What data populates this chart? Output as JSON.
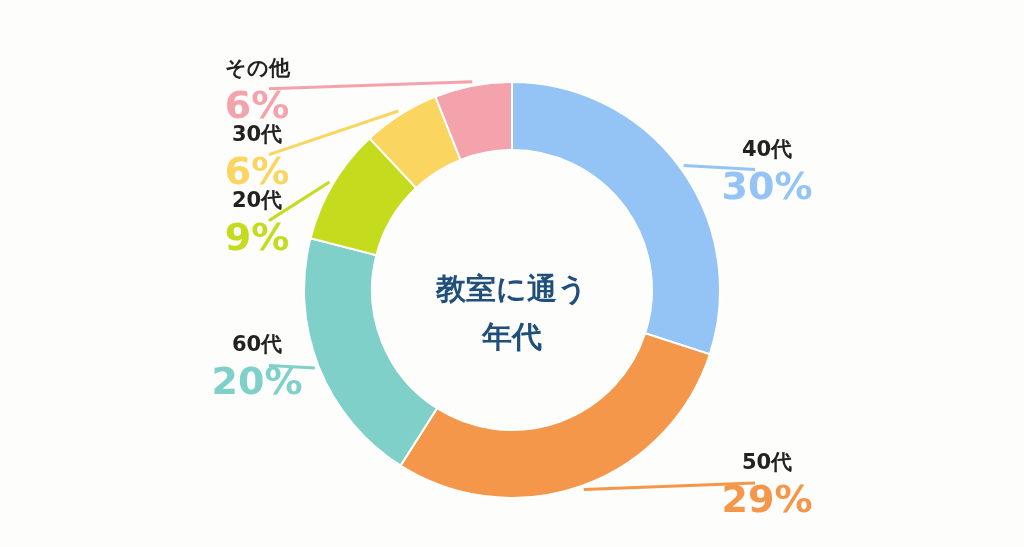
{
  "chart_data": {
    "type": "donut",
    "title": "教室に通う年代",
    "categories": [
      "40代",
      "50代",
      "60代",
      "20代",
      "30代",
      "その他"
    ],
    "values": [
      30,
      29,
      20,
      9,
      6,
      6
    ],
    "colors": [
      "#93c4f5",
      "#f4974a",
      "#7fd0c8",
      "#c5dc1e",
      "#fad560",
      "#f4a3ad"
    ],
    "value_labels": [
      "30%",
      "29%",
      "20%",
      "9%",
      "6%",
      "6%"
    ]
  }
}
